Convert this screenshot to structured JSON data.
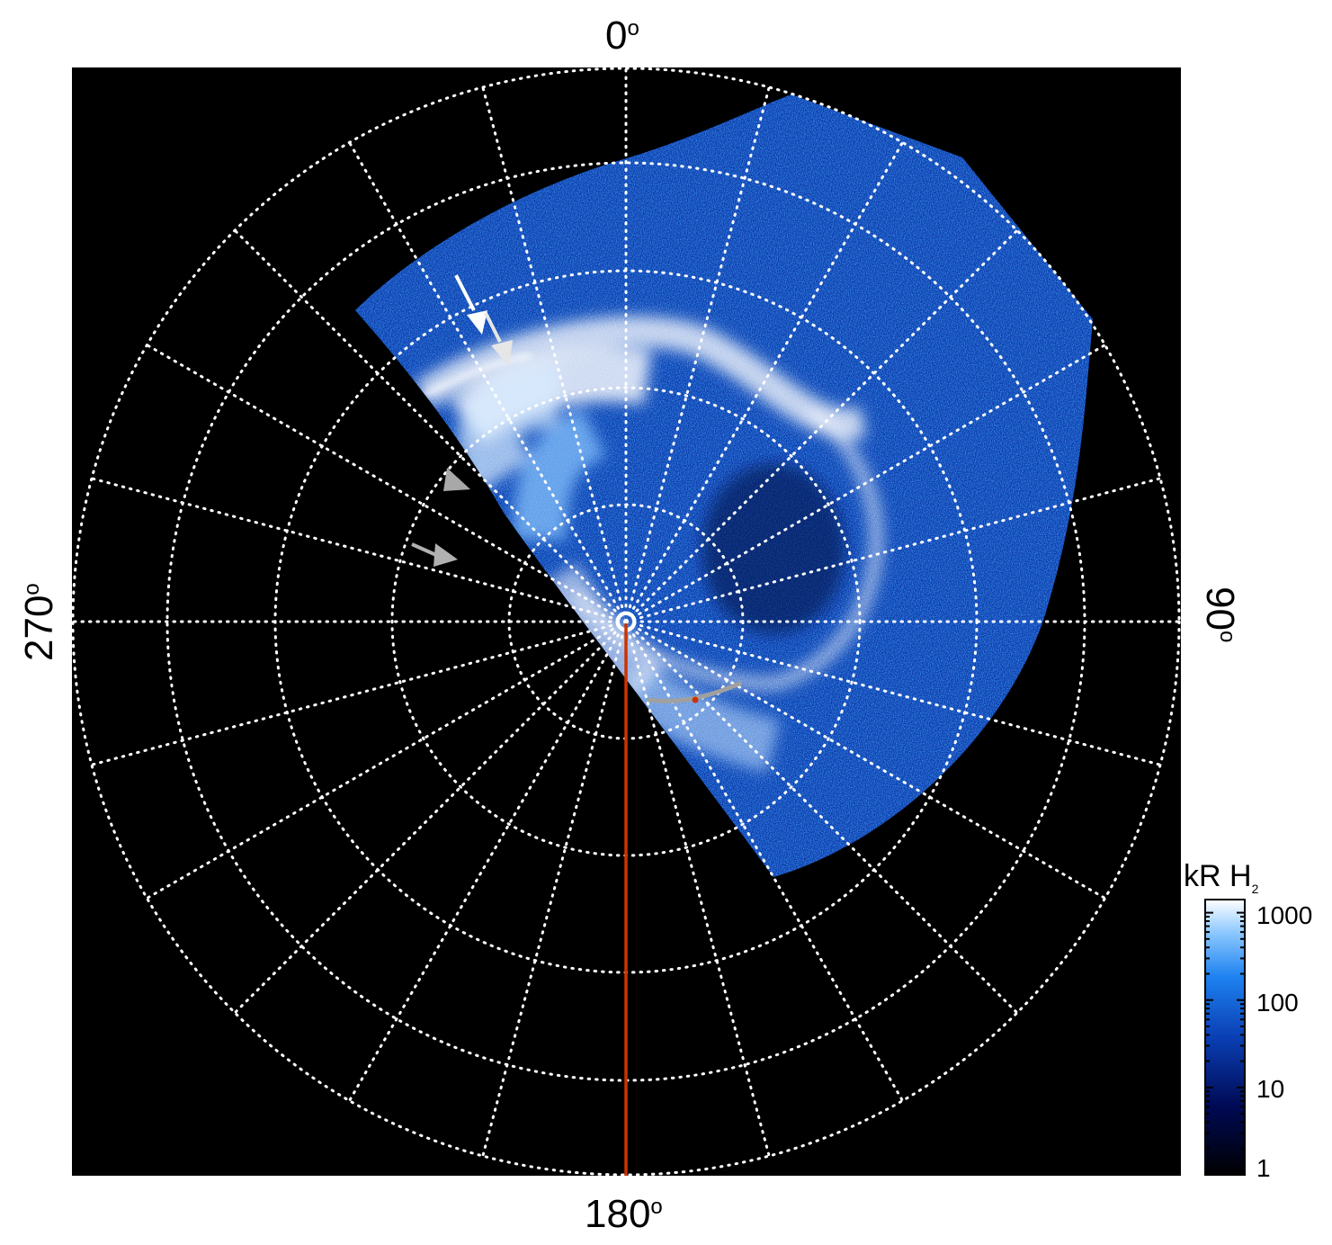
{
  "figure": {
    "axis_labels": {
      "top": "0",
      "bottom": "180",
      "left": "270",
      "right": "90",
      "degree_symbol": "o"
    },
    "colorbar": {
      "title": "kR H",
      "title_subscript": "2",
      "ticks": [
        "1000",
        "100",
        "10",
        "1"
      ],
      "scale": "log"
    },
    "colors": {
      "background": "#000000",
      "grid": "#ffffff",
      "meridian_line": "#cc3300",
      "footprint_arc": "#a0a0a0",
      "aurora_low": "#001a66",
      "aurora_mid": "#1e78e6",
      "aurora_high": "#ffffff"
    }
  }
}
